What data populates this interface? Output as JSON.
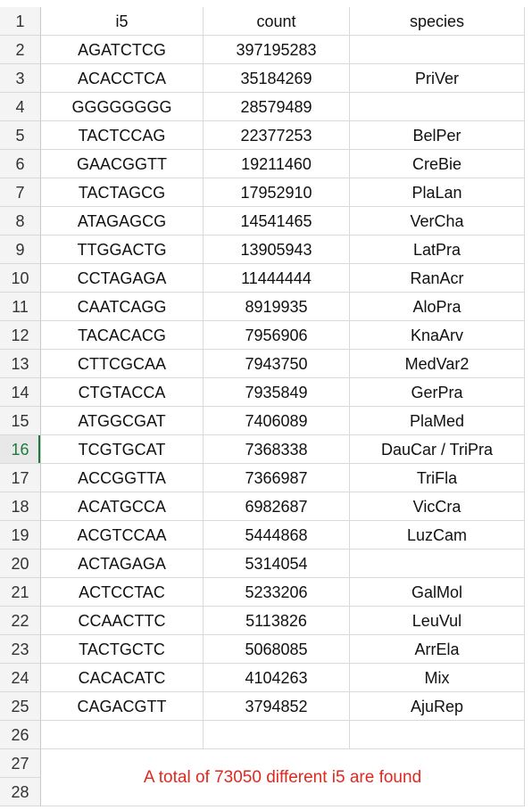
{
  "headers": {
    "row_number": "1",
    "col1": "i5",
    "col2": "count",
    "col3": "species"
  },
  "rows": [
    {
      "n": "2",
      "i5": "AGATCTCG",
      "count": "397195283",
      "species": ""
    },
    {
      "n": "3",
      "i5": "ACACCTCA",
      "count": "35184269",
      "species": "PriVer"
    },
    {
      "n": "4",
      "i5": "GGGGGGGG",
      "count": "28579489",
      "species": ""
    },
    {
      "n": "5",
      "i5": "TACTCCAG",
      "count": "22377253",
      "species": "BelPer"
    },
    {
      "n": "6",
      "i5": "GAACGGTT",
      "count": "19211460",
      "species": "CreBie"
    },
    {
      "n": "7",
      "i5": "TACTAGCG",
      "count": "17952910",
      "species": "PlaLan"
    },
    {
      "n": "8",
      "i5": "ATAGAGCG",
      "count": "14541465",
      "species": "VerCha"
    },
    {
      "n": "9",
      "i5": "TTGGACTG",
      "count": "13905943",
      "species": "LatPra"
    },
    {
      "n": "10",
      "i5": "CCTAGAGA",
      "count": "11444444",
      "species": "RanAcr"
    },
    {
      "n": "11",
      "i5": "CAATCAGG",
      "count": "8919935",
      "species": "AloPra"
    },
    {
      "n": "12",
      "i5": "TACACACG",
      "count": "7956906",
      "species": "KnaArv"
    },
    {
      "n": "13",
      "i5": "CTTCGCAA",
      "count": "7943750",
      "species": "MedVar2"
    },
    {
      "n": "14",
      "i5": "CTGTACCA",
      "count": "7935849",
      "species": "GerPra"
    },
    {
      "n": "15",
      "i5": "ATGGCGAT",
      "count": "7406089",
      "species": "PlaMed"
    },
    {
      "n": "16",
      "i5": "TCGTGCAT",
      "count": "7368338",
      "species": "DauCar / TriPra"
    },
    {
      "n": "17",
      "i5": "ACCGGTTA",
      "count": "7366987",
      "species": "TriFla"
    },
    {
      "n": "18",
      "i5": "ACATGCCA",
      "count": "6982687",
      "species": "VicCra"
    },
    {
      "n": "19",
      "i5": "ACGTCCAA",
      "count": "5444868",
      "species": "LuzCam"
    },
    {
      "n": "20",
      "i5": "ACTAGAGA",
      "count": "5314054",
      "species": ""
    },
    {
      "n": "21",
      "i5": "ACTCCTAC",
      "count": "5233206",
      "species": "GalMol"
    },
    {
      "n": "22",
      "i5": "CCAACTTC",
      "count": "5113826",
      "species": "LeuVul"
    },
    {
      "n": "23",
      "i5": "TACTGCTC",
      "count": "5068085",
      "species": "ArrEla"
    },
    {
      "n": "24",
      "i5": "CACACATC",
      "count": "4104263",
      "species": "Mix"
    },
    {
      "n": "25",
      "i5": "CAGACGTT",
      "count": "3794852",
      "species": "AjuRep"
    }
  ],
  "active_row": "16",
  "empty_row_26": "26",
  "row_27": "27",
  "row_28": "28",
  "note": {
    "text": "A total of 73050 different i5 are found",
    "color": "#e0281e"
  }
}
